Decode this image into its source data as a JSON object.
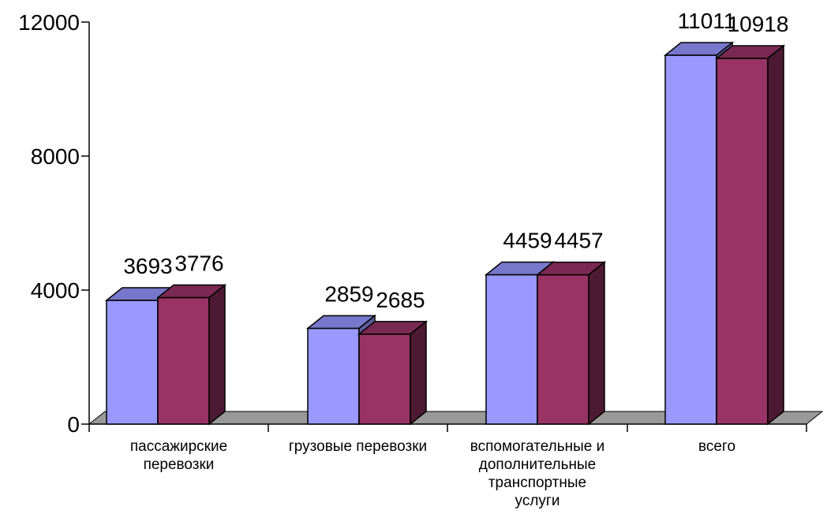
{
  "chart_data": {
    "type": "bar",
    "categories": [
      [
        "пассажирские",
        "перевозки"
      ],
      [
        "грузовые перевозки"
      ],
      [
        "вспомогательные и",
        "дополнительные",
        "транспортные",
        "услуги"
      ],
      [
        "всего"
      ]
    ],
    "series": [
      {
        "values": [
          3693,
          2859,
          4459,
          11011
        ],
        "color": "#9999ff",
        "top_color": "#7777cc",
        "side_color": "#5c5c99"
      },
      {
        "values": [
          3776,
          2685,
          4457,
          10918
        ],
        "color": "#993366",
        "top_color": "#7a2952",
        "side_color": "#4d1a33"
      }
    ],
    "yticks": [
      "0",
      "4000",
      "8000",
      "12000"
    ],
    "ylim": [
      0,
      12000
    ],
    "floor_color": "#999999",
    "grid": false,
    "legend": "none"
  }
}
